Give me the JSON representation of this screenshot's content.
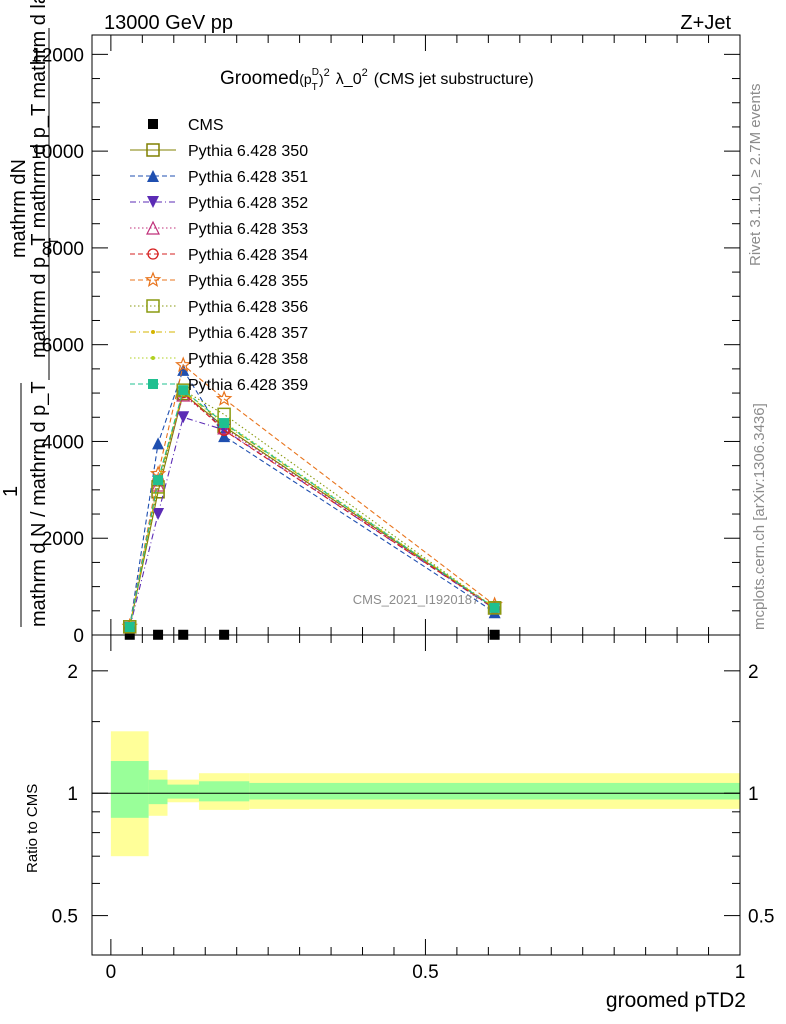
{
  "header": {
    "left": "13000 GeV pp",
    "right": "Z+Jet"
  },
  "title": {
    "main": "Groomed",
    "p": "(p",
    "sub": "T",
    "sup": "D",
    "close": ")",
    "exp": "2",
    "rest": "λ_0",
    "exp2": "2",
    "tail": "(CMS jet substructure)"
  },
  "side": {
    "rivet": "Rivet 3.1.10, ≥ 2.7M events",
    "mcplots": "mcplots.cern.ch [arXiv:1306.3436]"
  },
  "watermark": "CMS_2021_I1920187",
  "ylabel": {
    "num": "mathrm dN",
    "den": "mathrm d p_T mathrm d p_T mathrm d lambda",
    "one": "1",
    "full": "mathrm d N / mathrm d p_T",
    "sub_T": "T"
  },
  "ratio_label": "Ratio to CMS",
  "xlabel": "groomed pTD2",
  "chart_data": [
    {
      "type": "line",
      "panel": "main",
      "xlim": [
        -0.03,
        1.0
      ],
      "ylim": [
        0,
        12400
      ],
      "yticks": [
        0,
        2000,
        4000,
        6000,
        8000,
        10000,
        12000
      ],
      "ytick_labels": [
        "0",
        "2000",
        "4000",
        "6000",
        "8000",
        "10000",
        "12000"
      ],
      "x": [
        0.03,
        0.075,
        0.115,
        0.18,
        0.61
      ],
      "series": [
        {
          "name": "CMS",
          "values": [
            5,
            5,
            5,
            5,
            5
          ],
          "color": "#000000",
          "marker": "square-filled",
          "line": "none"
        },
        {
          "name": "Pythia 6.428 350",
          "values": [
            170,
            2960,
            4990,
            4310,
            560
          ],
          "color": "#808000",
          "marker": "square-open",
          "line": "solid"
        },
        {
          "name": "Pythia 6.428 351",
          "values": [
            160,
            3960,
            5480,
            4110,
            470
          ],
          "color": "#1f4fb0",
          "marker": "triangle-up-filled",
          "line": "dashed"
        },
        {
          "name": "Pythia 6.428 352",
          "values": [
            150,
            2500,
            4500,
            4240,
            540
          ],
          "color": "#5b2bb5",
          "marker": "triangle-down-filled",
          "line": "dashdot"
        },
        {
          "name": "Pythia 6.428 353",
          "values": [
            165,
            3100,
            4960,
            4280,
            560
          ],
          "color": "#c0307a",
          "marker": "triangle-up-open",
          "line": "dotted"
        },
        {
          "name": "Pythia 6.428 354",
          "values": [
            160,
            3200,
            5010,
            4230,
            550
          ],
          "color": "#d62020",
          "marker": "circle-open",
          "line": "dashed"
        },
        {
          "name": "Pythia 6.428 355",
          "values": [
            175,
            3330,
            5580,
            4880,
            620
          ],
          "color": "#e8741c",
          "marker": "star-open",
          "line": "dashed"
        },
        {
          "name": "Pythia 6.428 356",
          "values": [
            170,
            3060,
            5060,
            4560,
            560
          ],
          "color": "#8a9a10",
          "marker": "square-open",
          "line": "dotted"
        },
        {
          "name": "Pythia 6.428 357",
          "values": [
            165,
            3150,
            5030,
            4360,
            570
          ],
          "color": "#d4b400",
          "marker": "dot",
          "line": "dashdot"
        },
        {
          "name": "Pythia 6.428 358",
          "values": [
            165,
            3180,
            5050,
            4400,
            570
          ],
          "color": "#b0d020",
          "marker": "dot",
          "line": "dotted"
        },
        {
          "name": "Pythia 6.428 359",
          "values": [
            165,
            3200,
            5060,
            4380,
            560
          ],
          "color": "#20c090",
          "marker": "square-filled",
          "line": "dashed"
        }
      ]
    },
    {
      "type": "area",
      "panel": "ratio",
      "ylabel": "Ratio to CMS",
      "xlabel": "groomed pTD2",
      "xlim": [
        -0.03,
        1.0
      ],
      "ylim": [
        0.4,
        2.45
      ],
      "log_y": true,
      "yticks": [
        0.5,
        1,
        2
      ],
      "ytick_labels": [
        "0.5",
        "1",
        "2"
      ],
      "xticks": [
        0,
        0.5,
        1
      ],
      "xtick_labels": [
        "0",
        "0.5",
        "1"
      ],
      "bins": [
        {
          "x0": 0.0,
          "x1": 0.06,
          "inner": [
            0.87,
            1.2
          ],
          "outer": [
            0.7,
            1.42
          ]
        },
        {
          "x0": 0.06,
          "x1": 0.09,
          "inner": [
            0.94,
            1.08
          ],
          "outer": [
            0.88,
            1.14
          ]
        },
        {
          "x0": 0.09,
          "x1": 0.14,
          "inner": [
            0.97,
            1.05
          ],
          "outer": [
            0.95,
            1.08
          ]
        },
        {
          "x0": 0.14,
          "x1": 0.22,
          "inner": [
            0.955,
            1.07
          ],
          "outer": [
            0.91,
            1.12
          ]
        },
        {
          "x0": 0.22,
          "x1": 1.0,
          "inner": [
            0.965,
            1.06
          ],
          "outer": [
            0.915,
            1.12
          ]
        }
      ],
      "colors": {
        "inner": "#99ff99",
        "outer": "#ffff99"
      }
    }
  ]
}
